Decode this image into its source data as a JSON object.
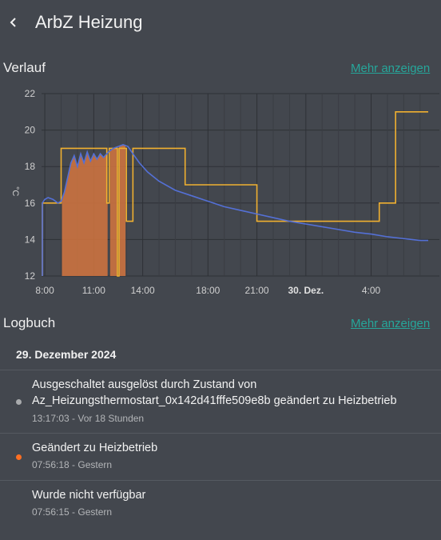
{
  "header": {
    "title": "ArbZ Heizung",
    "back_icon": "chevron-left-icon"
  },
  "history": {
    "title": "Verlauf",
    "more_label": "Mehr anzeigen",
    "unit": "°C"
  },
  "chart_data": {
    "type": "line",
    "ylabel": "°C",
    "ylim": [
      12,
      22
    ],
    "y_ticks": [
      12,
      14,
      16,
      18,
      20,
      22
    ],
    "x_ticks": [
      {
        "label": "8:00",
        "hour": 8,
        "bold": false
      },
      {
        "label": "11:00",
        "hour": 11,
        "bold": false
      },
      {
        "label": "14:00",
        "hour": 14,
        "bold": false
      },
      {
        "label": "18:00",
        "hour": 18,
        "bold": false
      },
      {
        "label": "21:00",
        "hour": 21,
        "bold": false
      },
      {
        "label": "30. Dez.",
        "hour": 24,
        "bold": true
      },
      {
        "label": "4:00",
        "hour": 28,
        "bold": false
      }
    ],
    "xlim_hours": [
      7.8,
      31.5
    ],
    "colors": {
      "current": "#5470d6",
      "target": "#f0b030",
      "heating": "#d4753f"
    },
    "series": [
      {
        "key": "target",
        "points": [
          [
            7.85,
            12
          ],
          [
            7.85,
            16
          ],
          [
            9.0,
            16
          ],
          [
            9.0,
            19
          ],
          [
            11.8,
            19
          ],
          [
            11.8,
            16
          ],
          [
            11.95,
            16
          ],
          [
            11.95,
            19
          ],
          [
            12.45,
            19
          ],
          [
            12.45,
            12
          ],
          [
            12.55,
            12
          ],
          [
            12.55,
            19
          ],
          [
            13.0,
            19
          ],
          [
            13.0,
            15
          ],
          [
            13.4,
            15
          ],
          [
            13.4,
            19
          ],
          [
            16.6,
            19
          ],
          [
            16.6,
            17
          ],
          [
            21.0,
            17
          ],
          [
            21.0,
            15
          ],
          [
            28.5,
            15
          ],
          [
            28.5,
            16
          ],
          [
            29.5,
            16
          ],
          [
            29.5,
            21
          ],
          [
            31.5,
            21
          ]
        ]
      },
      {
        "key": "current",
        "points": [
          [
            7.85,
            12
          ],
          [
            7.85,
            16
          ],
          [
            8.0,
            16.2
          ],
          [
            8.2,
            16.3
          ],
          [
            8.5,
            16.2
          ],
          [
            8.8,
            16.0
          ],
          [
            9.0,
            16.1
          ],
          [
            9.2,
            16.6
          ],
          [
            9.4,
            17.4
          ],
          [
            9.6,
            18.2
          ],
          [
            9.8,
            18.6
          ],
          [
            10.0,
            18.0
          ],
          [
            10.2,
            18.7
          ],
          [
            10.4,
            18.2
          ],
          [
            10.6,
            18.8
          ],
          [
            10.8,
            18.3
          ],
          [
            11.0,
            18.7
          ],
          [
            11.2,
            18.4
          ],
          [
            11.4,
            18.7
          ],
          [
            11.6,
            18.5
          ],
          [
            11.9,
            18.8
          ],
          [
            12.2,
            19.0
          ],
          [
            12.5,
            19.1
          ],
          [
            12.8,
            19.2
          ],
          [
            13.1,
            19.1
          ],
          [
            13.4,
            18.7
          ],
          [
            13.8,
            18.2
          ],
          [
            14.3,
            17.7
          ],
          [
            15.0,
            17.2
          ],
          [
            16.0,
            16.7
          ],
          [
            17.0,
            16.4
          ],
          [
            18.0,
            16.1
          ],
          [
            19.0,
            15.8
          ],
          [
            20.0,
            15.6
          ],
          [
            21.0,
            15.4
          ],
          [
            22.0,
            15.2
          ],
          [
            23.0,
            15.0
          ],
          [
            24.0,
            14.85
          ],
          [
            25.0,
            14.7
          ],
          [
            26.0,
            14.55
          ],
          [
            27.0,
            14.4
          ],
          [
            28.0,
            14.3
          ],
          [
            29.0,
            14.15
          ],
          [
            30.0,
            14.05
          ],
          [
            31.0,
            13.95
          ],
          [
            31.5,
            13.95
          ]
        ]
      }
    ],
    "heating_periods": [
      [
        9.05,
        11.85
      ],
      [
        12.0,
        12.45
      ],
      [
        12.55,
        12.95
      ]
    ]
  },
  "logbook": {
    "title": "Logbuch",
    "more_label": "Mehr anzeigen",
    "date": "29. Dezember 2024",
    "entries": [
      {
        "line1": "Ausgeschaltet ausgelöst durch Zustand von",
        "line2": "Az_Heizungsthermostart_0x142d41fffe509e8b geändert zu Heizbetrieb",
        "meta": "13:17:03 - Vor 18 Stunden",
        "dot_color": "#a9abad"
      },
      {
        "line1": "Geändert zu Heizbetrieb",
        "meta": "07:56:18 - Gestern",
        "dot_color": "#ff6f22"
      },
      {
        "line1": "Wurde nicht verfügbar",
        "meta": "07:56:15 - Gestern",
        "dot_color": ""
      }
    ]
  }
}
